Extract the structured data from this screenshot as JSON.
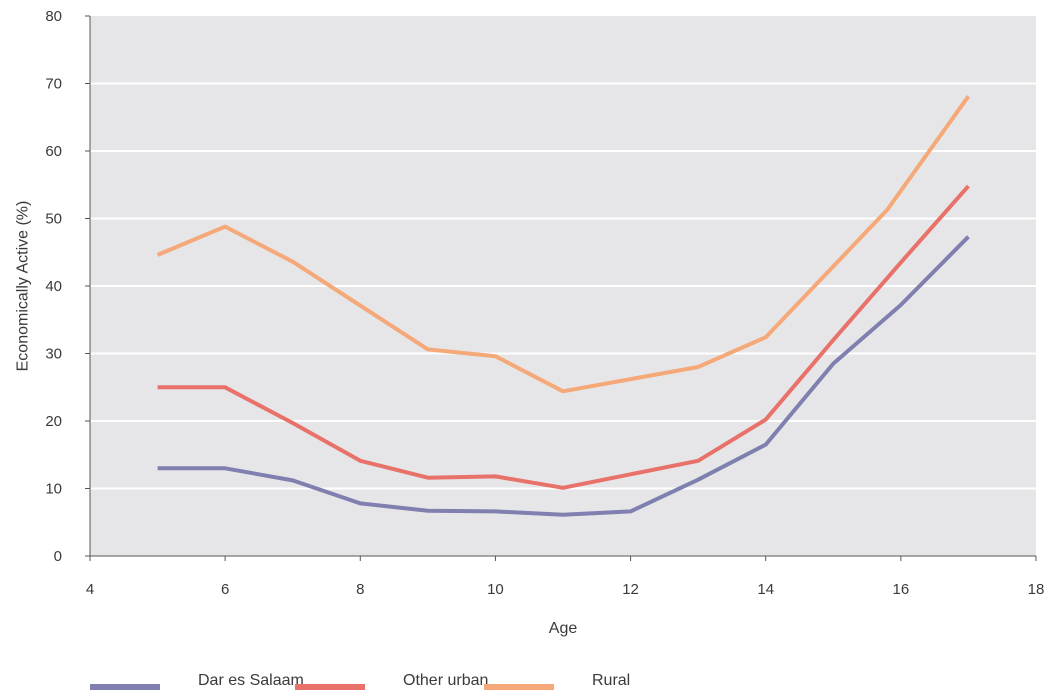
{
  "chart_data": {
    "type": "line",
    "xlabel": "Age",
    "ylabel": "Economically Active (%)",
    "xlim": [
      4,
      18
    ],
    "ylim": [
      0,
      80
    ],
    "x_ticks": [
      "4",
      "6",
      "8",
      "10",
      "12",
      "14",
      "16",
      "18"
    ],
    "y_ticks": [
      "0",
      "10",
      "20",
      "30",
      "40",
      "50",
      "60",
      "70",
      "80"
    ],
    "grid": true,
    "legend_position": "bottom",
    "series": [
      {
        "name": "Dar es Salaam",
        "color": "#7f7fb0",
        "points": [
          [
            5,
            13.0
          ],
          [
            6,
            13.0
          ],
          [
            7,
            11.2
          ],
          [
            8,
            7.8
          ],
          [
            9,
            6.7
          ],
          [
            10,
            6.6
          ],
          [
            11,
            6.1
          ],
          [
            12,
            6.6
          ],
          [
            13,
            11.3
          ],
          [
            14,
            16.5
          ],
          [
            15,
            28.5
          ],
          [
            16,
            37.2
          ],
          [
            17,
            47.3
          ]
        ]
      },
      {
        "name": "Other urban",
        "color": "#e8726a",
        "points": [
          [
            5,
            25.0
          ],
          [
            6,
            25.0
          ],
          [
            7,
            19.7
          ],
          [
            8,
            14.1
          ],
          [
            9,
            11.6
          ],
          [
            10,
            11.8
          ],
          [
            11,
            10.1
          ],
          [
            12,
            12.1
          ],
          [
            13,
            14.1
          ],
          [
            14,
            20.2
          ],
          [
            15,
            32.0
          ],
          [
            16,
            43.5
          ],
          [
            17,
            54.8
          ]
        ]
      },
      {
        "name": "Rural",
        "color": "#f5a878",
        "points": [
          [
            5,
            44.6
          ],
          [
            6,
            48.8
          ],
          [
            7,
            43.6
          ],
          [
            8,
            37.1
          ],
          [
            9,
            30.6
          ],
          [
            10,
            29.6
          ],
          [
            11,
            24.4
          ],
          [
            12,
            26.2
          ],
          [
            13,
            28.0
          ],
          [
            14,
            32.4
          ],
          [
            15,
            42.9
          ],
          [
            15.8,
            51.3
          ],
          [
            17,
            68.1
          ]
        ]
      }
    ]
  }
}
